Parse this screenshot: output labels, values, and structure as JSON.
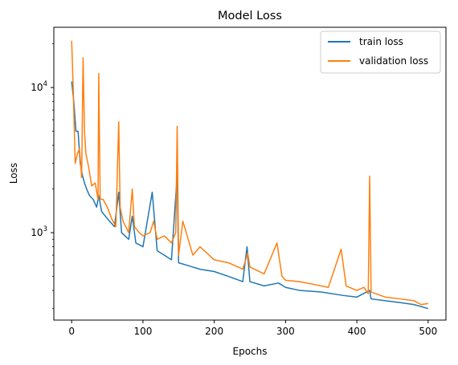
{
  "chart_data": {
    "type": "line",
    "title": "Model Loss",
    "xlabel": "Epochs",
    "ylabel": "Loss",
    "xlim": [
      -25,
      525
    ],
    "ylim": [
      250,
      26000
    ],
    "yscale": "log",
    "grid": false,
    "legend_position": "top-right",
    "x_ticks": [
      0,
      100,
      200,
      300,
      400,
      500
    ],
    "y_ticks": [
      {
        "value": 10000,
        "base": "10",
        "exp": "4"
      },
      {
        "value": 1000,
        "base": "10",
        "exp": "3"
      }
    ],
    "series": [
      {
        "name": "train loss",
        "color": "#1f77b4",
        "x": [
          0,
          3,
          6,
          9,
          12,
          15,
          18,
          21,
          25,
          30,
          35,
          38,
          42,
          50,
          60,
          66,
          70,
          80,
          85,
          90,
          100,
          113,
          120,
          130,
          140,
          148,
          150,
          160,
          180,
          200,
          220,
          240,
          246,
          250,
          270,
          290,
          300,
          320,
          350,
          380,
          400,
          418,
          420,
          440,
          460,
          480,
          500
        ],
        "y": [
          11000,
          8000,
          5000,
          5000,
          3000,
          2500,
          2200,
          2000,
          1800,
          1700,
          1500,
          1800,
          1400,
          1250,
          1100,
          1900,
          1000,
          900,
          1300,
          850,
          800,
          1900,
          750,
          700,
          650,
          2500,
          620,
          600,
          560,
          540,
          500,
          460,
          800,
          460,
          430,
          450,
          420,
          400,
          390,
          370,
          360,
          400,
          350,
          340,
          330,
          320,
          300
        ]
      },
      {
        "name": "validation loss",
        "color": "#ff7f0e",
        "x": [
          0,
          2,
          5,
          8,
          11,
          14,
          16,
          18,
          20,
          24,
          28,
          33,
          37,
          38,
          40,
          44,
          50,
          56,
          62,
          66,
          68,
          72,
          80,
          85,
          88,
          95,
          100,
          110,
          115,
          120,
          130,
          140,
          146,
          148,
          150,
          156,
          170,
          180,
          200,
          220,
          240,
          247,
          250,
          270,
          288,
          295,
          300,
          320,
          340,
          360,
          378,
          385,
          400,
          410,
          416,
          418,
          420,
          440,
          460,
          480,
          490,
          500
        ],
        "y": [
          21000,
          10500,
          3000,
          3500,
          3800,
          2400,
          16000,
          5000,
          3500,
          2800,
          2100,
          2200,
          1700,
          12500,
          1700,
          1700,
          1500,
          1250,
          1100,
          5800,
          1500,
          1200,
          1000,
          2000,
          1100,
          1000,
          950,
          1000,
          1200,
          900,
          950,
          850,
          1000,
          5400,
          700,
          1200,
          700,
          800,
          650,
          620,
          560,
          720,
          580,
          520,
          850,
          500,
          470,
          460,
          440,
          420,
          770,
          430,
          400,
          420,
          380,
          2450,
          390,
          360,
          350,
          340,
          320,
          325
        ]
      }
    ]
  }
}
